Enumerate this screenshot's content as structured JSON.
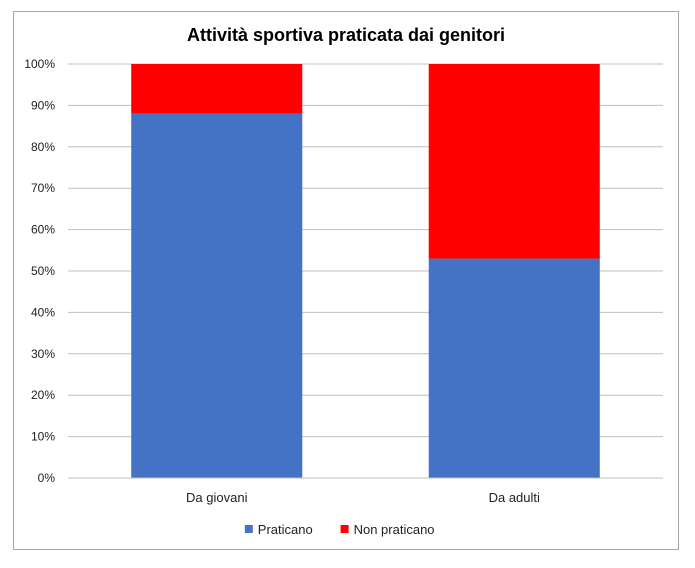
{
  "chart_data": {
    "type": "bar",
    "stacked": true,
    "percent": true,
    "title": "Attività sportiva praticata dai  genitori",
    "categories": [
      "Da giovani",
      "Da adulti"
    ],
    "series": [
      {
        "name": "Praticano",
        "values": [
          88,
          53
        ],
        "color": "#4472C4"
      },
      {
        "name": "Non praticano",
        "values": [
          12,
          47
        ],
        "color": "#FF0000"
      }
    ],
    "ylim": [
      0,
      100
    ],
    "yticks": [
      "0%",
      "10%",
      "20%",
      "30%",
      "40%",
      "50%",
      "60%",
      "70%",
      "80%",
      "90%",
      "100%"
    ],
    "grid": true,
    "legend_position": "bottom"
  }
}
